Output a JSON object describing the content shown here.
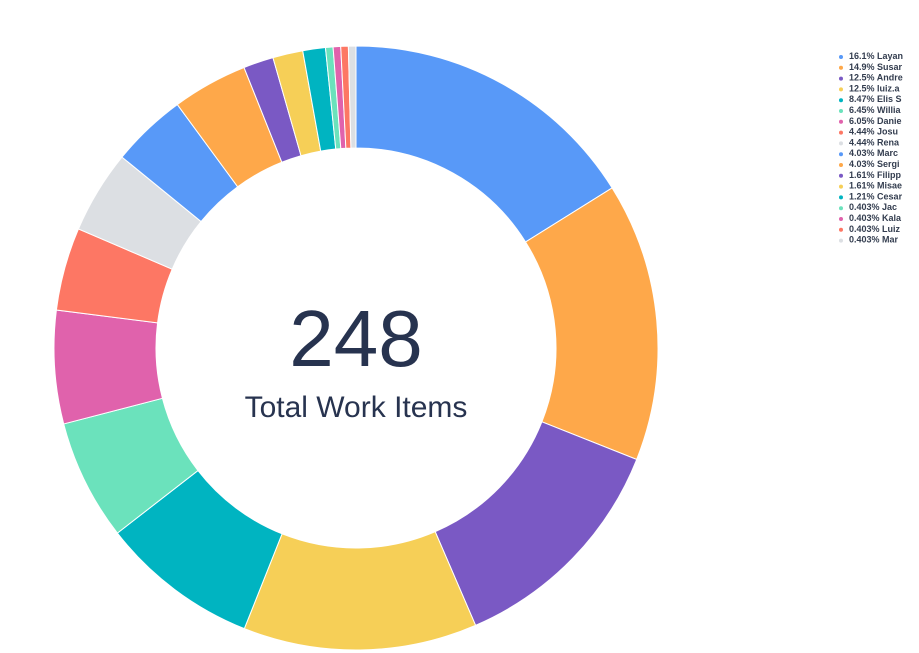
{
  "chart_data": {
    "type": "donut",
    "center_value": 248,
    "center_label": "Total Work Items",
    "series": [
      {
        "name": "Layan",
        "color": "#5899f8",
        "values": [
          16.1
        ],
        "value_labels": [
          "16.1%"
        ]
      },
      {
        "name": "Susar",
        "color": "#fea84a",
        "values": [
          14.9
        ],
        "value_labels": [
          "14.9%"
        ]
      },
      {
        "name": "Andre",
        "color": "#7a59c4",
        "values": [
          12.5
        ],
        "value_labels": [
          "12.5%"
        ]
      },
      {
        "name": "luiz.a",
        "color": "#f6cf57",
        "values": [
          12.5
        ],
        "value_labels": [
          "12.5%"
        ]
      },
      {
        "name": "Elis S",
        "color": "#00b4c1",
        "values": [
          8.47
        ],
        "value_labels": [
          "8.47%"
        ]
      },
      {
        "name": "Willia",
        "color": "#6be2bc",
        "values": [
          6.45
        ],
        "value_labels": [
          "6.45%"
        ]
      },
      {
        "name": "Danie",
        "color": "#e062ac",
        "values": [
          6.05
        ],
        "value_labels": [
          "6.05%"
        ]
      },
      {
        "name": "Josu",
        "color": "#fd7764",
        "values": [
          4.44
        ],
        "value_labels": [
          "4.44%"
        ]
      },
      {
        "name": "Rena",
        "color": "#dcdfe3",
        "values": [
          4.44
        ],
        "value_labels": [
          "4.44%"
        ]
      },
      {
        "name": "Marc",
        "color": "#5899f8",
        "values": [
          4.03
        ],
        "value_labels": [
          "4.03%"
        ]
      },
      {
        "name": "Sergi",
        "color": "#fea84a",
        "values": [
          4.03
        ],
        "value_labels": [
          "4.03%"
        ]
      },
      {
        "name": "Filipp",
        "color": "#7a59c4",
        "values": [
          1.61
        ],
        "value_labels": [
          "1.61%"
        ]
      },
      {
        "name": "Misae",
        "color": "#f6cf57",
        "values": [
          1.61
        ],
        "value_labels": [
          "1.61%"
        ]
      },
      {
        "name": "Cesar",
        "color": "#00b4c1",
        "values": [
          1.21
        ],
        "value_labels": [
          "1.21%"
        ]
      },
      {
        "name": "Jac",
        "color": "#6be2bc",
        "values": [
          0.403
        ],
        "value_labels": [
          "0.403%"
        ]
      },
      {
        "name": "Kala",
        "color": "#e062ac",
        "values": [
          0.403
        ],
        "value_labels": [
          "0.403%"
        ]
      },
      {
        "name": "Luiz",
        "color": "#fd7764",
        "values": [
          0.403
        ],
        "value_labels": [
          "0.403%"
        ]
      },
      {
        "name": "Mar",
        "color": "#dcdfe3",
        "values": [
          0.403
        ],
        "value_labels": [
          "0.403%"
        ]
      }
    ]
  }
}
